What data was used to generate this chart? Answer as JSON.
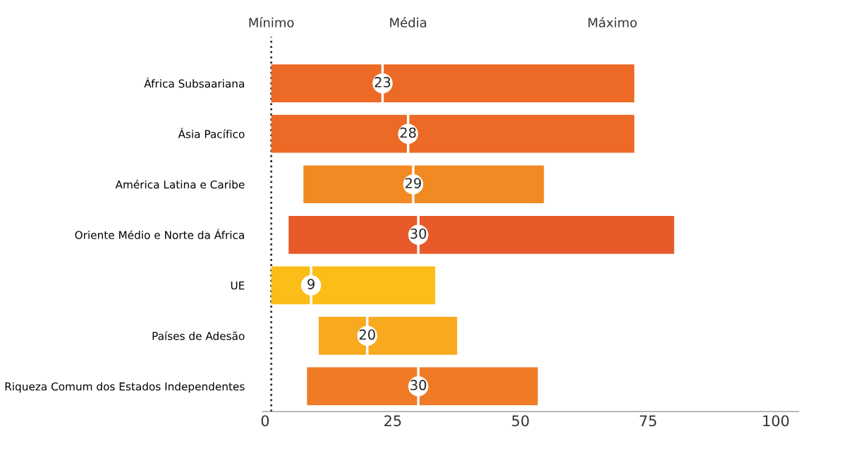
{
  "chart_data": {
    "type": "bar",
    "orientation": "horizontal",
    "categories": [
      "África Subsaariana",
      "Ásia Pacífico",
      "América Latina e Caribe",
      "Oriente Médio e Norte da África",
      "UE",
      "Países de Adesão",
      "Riqueza Comum dos Estados Independentes"
    ],
    "series": [
      {
        "base": [
          1.2,
          1.2,
          7.5,
          4.6,
          1.2,
          10.5,
          8.2
        ],
        "values": [
          71.1,
          71.1,
          47.1,
          75.5,
          32.1,
          27.1,
          45.2
        ],
        "colors": [
          "#ec6a25",
          "#ec6a25",
          "#f18a22",
          "#e85a2a",
          "#fbbd18",
          "#f8a91e",
          "#f07a26"
        ]
      },
      {
        "type": "scatter",
        "values": [
          23,
          28,
          29,
          30,
          9,
          20,
          30
        ],
        "color": "#ffffff",
        "value_labels": [
          "23",
          "28",
          "29",
          "30",
          "9",
          "20",
          "30"
        ]
      }
    ],
    "xlim": [
      -0.5,
      104.5
    ],
    "xticks": [
      0,
      25,
      50,
      75,
      100
    ],
    "grid": false,
    "ref_lines": [
      {
        "axis": "x",
        "value": 1.2,
        "label": "Mínimo",
        "color": "#333333",
        "line_style": "dotted"
      }
    ],
    "annotations": [
      "Média",
      "Máximo"
    ]
  }
}
